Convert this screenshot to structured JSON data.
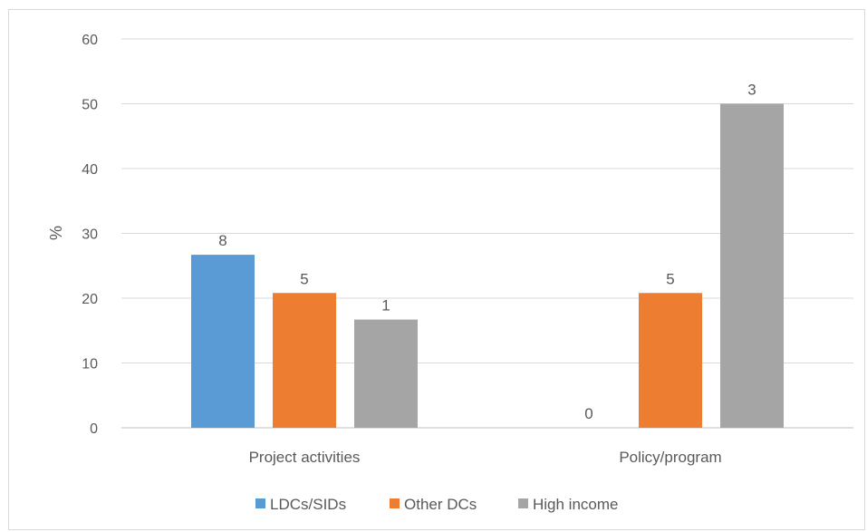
{
  "chart_data": {
    "type": "bar",
    "title": "",
    "xlabel": "",
    "ylabel": "%",
    "ylim": [
      0,
      60
    ],
    "yticks": [
      0,
      10,
      20,
      30,
      40,
      50,
      60
    ],
    "grid": true,
    "legend_position": "bottom",
    "categories": [
      "Project activities",
      "Policy/program"
    ],
    "series": [
      {
        "name": "LDCs/SIDs",
        "color": "#5b9bd5",
        "values": [
          26.7,
          0
        ],
        "labels": [
          "8",
          "0"
        ]
      },
      {
        "name": "Other DCs",
        "color": "#ed7d31",
        "values": [
          20.8,
          20.8
        ],
        "labels": [
          "5",
          "5"
        ]
      },
      {
        "name": "High income",
        "color": "#a5a5a5",
        "values": [
          16.7,
          50
        ],
        "labels": [
          "1",
          "3"
        ]
      }
    ]
  }
}
